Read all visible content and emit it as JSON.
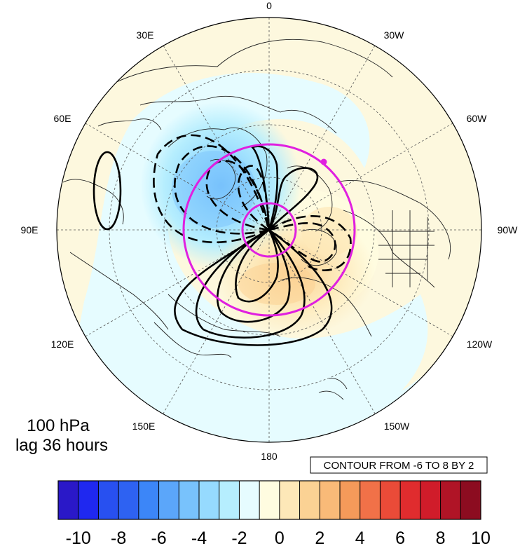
{
  "map": {
    "projection": "north polar stereographic",
    "longitude_labels": {
      "top": "0",
      "top_right": "30W",
      "right_upper": "60W",
      "right": "90W",
      "right_lower": "120W",
      "bottom_right": "150W",
      "bottom": "180",
      "bottom_left": "150E",
      "left_lower": "120E",
      "left": "90E",
      "left_upper": "60E",
      "top_left": "30E"
    },
    "level_label": "100 hPa",
    "lag_label": "lag 36 hours",
    "contour_info": "CONTOUR FROM -6 TO 8 BY 2",
    "colors": {
      "highlight_circles": "#e020e0",
      "contour_lines": "#000000",
      "ocean_base": "#e6fcff",
      "land_base": "#fdf8de"
    }
  },
  "colorbar": {
    "tick_labels": [
      "-10",
      "-8",
      "-6",
      "-4",
      "-2",
      "0",
      "2",
      "4",
      "6",
      "8",
      "10"
    ],
    "colors": [
      "#2a18c8",
      "#1f28f0",
      "#2850f0",
      "#2e62f2",
      "#3c86f8",
      "#5ba6fa",
      "#78c2fc",
      "#96dafe",
      "#b6eefe",
      "#e6fcff",
      "#fffce0",
      "#fde8b8",
      "#fbd294",
      "#f9ba78",
      "#f59a5a",
      "#f17148",
      "#ea4b38",
      "#e02c2e",
      "#d01c2a",
      "#b01426",
      "#8c0c20"
    ]
  }
}
